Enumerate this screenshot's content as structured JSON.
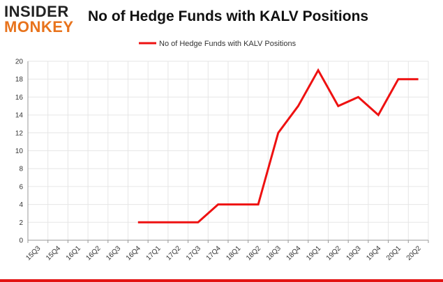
{
  "brand": {
    "line1": "INSIDER",
    "line2": "MONKEY"
  },
  "colors": {
    "series": "#ee1111",
    "grid": "#e6e6e6",
    "axis": "#999999",
    "brand_bar": "#e31414",
    "brand_accent": "#e8731c"
  },
  "chart_data": {
    "type": "line",
    "title": "No of Hedge Funds with KALV Positions",
    "xlabel": "",
    "ylabel": "",
    "categories": [
      "15Q3",
      "15Q4",
      "16Q1",
      "16Q2",
      "16Q3",
      "16Q4",
      "17Q1",
      "17Q2",
      "17Q3",
      "17Q4",
      "18Q1",
      "18Q2",
      "18Q3",
      "18Q4",
      "19Q1",
      "19Q2",
      "19Q3",
      "19Q4",
      "20Q1",
      "20Q2"
    ],
    "series": [
      {
        "name": "No of Hedge Funds with KALV Positions",
        "values": [
          null,
          null,
          null,
          null,
          null,
          2,
          2,
          2,
          2,
          4,
          4,
          4,
          12,
          15,
          19,
          15,
          16,
          14,
          18,
          18
        ]
      }
    ],
    "ylim": [
      0,
      20
    ],
    "yticks": [
      0,
      2,
      4,
      6,
      8,
      10,
      12,
      14,
      16,
      18,
      20
    ],
    "grid": true,
    "legend_position": "top-center"
  }
}
